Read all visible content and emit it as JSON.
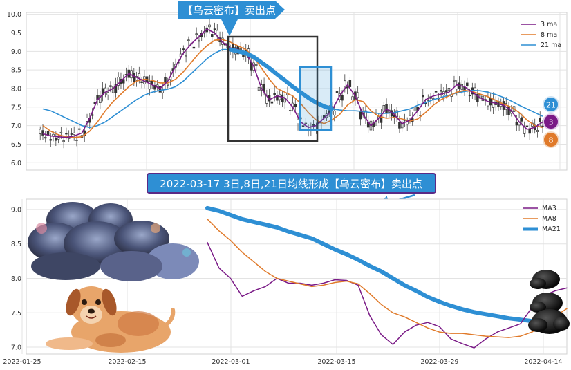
{
  "colors": {
    "ma3": "#7a1a86",
    "ma8": "#e07a2a",
    "ma21": "#2e8fd4",
    "up": "#555555",
    "down": "#333333",
    "box_dark": "#333333",
    "box_blue": "#2e8fd4",
    "annotation_bg": "#2e8fd4"
  },
  "annotations": {
    "top_arrow_label": "【乌云密布】卖出点",
    "middle_banner": "2022-03-17 3日,8日,21日均线形成【乌云密布】卖出点"
  },
  "badges": [
    "21",
    "3",
    "8"
  ],
  "illustrations": [
    "storm-clouds",
    "dog",
    "dark-clouds"
  ],
  "chart_data": [
    {
      "type": "line",
      "panel": "top",
      "ylim": [
        5.8,
        10.05
      ],
      "yticks": [
        "6.0",
        "6.5",
        "7.0",
        "7.5",
        "8.0",
        "8.5",
        "9.0",
        "9.5",
        "10.0"
      ],
      "grid": true,
      "legend_position": "top-right",
      "series": [
        {
          "name": "3 ma",
          "values": [
            6.78,
            6.72,
            6.7,
            6.68,
            6.72,
            6.8,
            7.2,
            7.7,
            7.9,
            8.0,
            8.2,
            8.4,
            8.3,
            8.2,
            8.1,
            8.0,
            8.2,
            8.6,
            8.95,
            9.2,
            9.4,
            9.6,
            9.5,
            9.25,
            9.1,
            9.05,
            8.95,
            8.6,
            8.0,
            7.7,
            7.8,
            7.75,
            7.5,
            7.1,
            6.95,
            7.0,
            7.2,
            7.4,
            7.8,
            8.1,
            7.8,
            7.3,
            7.0,
            7.2,
            7.45,
            7.3,
            7.05,
            7.15,
            7.4,
            7.7,
            7.8,
            7.85,
            7.9,
            8.1,
            8.05,
            7.9,
            7.75,
            7.65,
            7.6,
            7.55,
            7.4,
            7.1,
            6.9,
            6.95,
            7.1
          ]
        },
        {
          "name": "8 ma",
          "values": [
            7.0,
            6.85,
            6.75,
            6.7,
            6.68,
            6.7,
            6.85,
            7.1,
            7.4,
            7.65,
            7.85,
            8.05,
            8.2,
            8.25,
            8.22,
            8.15,
            8.15,
            8.25,
            8.45,
            8.7,
            8.95,
            9.15,
            9.3,
            9.32,
            9.25,
            9.15,
            9.05,
            8.85,
            8.55,
            8.25,
            8.0,
            7.9,
            7.8,
            7.6,
            7.35,
            7.15,
            7.05,
            7.15,
            7.3,
            7.55,
            7.7,
            7.65,
            7.4,
            7.25,
            7.2,
            7.22,
            7.18,
            7.12,
            7.18,
            7.35,
            7.55,
            7.7,
            7.8,
            7.9,
            7.95,
            7.92,
            7.85,
            7.78,
            7.68,
            7.58,
            7.5,
            7.35,
            7.15,
            7.0,
            6.95
          ]
        },
        {
          "name": "21 ma",
          "values": [
            7.45,
            7.4,
            7.3,
            7.2,
            7.1,
            7.0,
            6.95,
            7.0,
            7.1,
            7.25,
            7.4,
            7.55,
            7.7,
            7.82,
            7.9,
            7.95,
            7.98,
            8.05,
            8.2,
            8.4,
            8.6,
            8.8,
            8.95,
            9.05,
            9.05,
            9.0,
            8.95,
            8.85,
            8.7,
            8.55,
            8.38,
            8.22,
            8.05,
            7.9,
            7.75,
            7.62,
            7.52,
            7.45,
            7.42,
            7.4,
            7.4,
            7.38,
            7.35,
            7.33,
            7.33,
            7.35,
            7.4,
            7.45,
            7.55,
            7.62,
            7.7,
            7.76,
            7.82,
            7.88,
            7.92,
            7.95,
            7.94,
            7.9,
            7.84,
            7.76,
            7.66,
            7.55,
            7.45,
            7.35,
            7.25
          ]
        }
      ]
    },
    {
      "type": "line",
      "panel": "bottom",
      "ylim": [
        6.9,
        9.15
      ],
      "yticks": [
        "7.0",
        "7.5",
        "8.0",
        "8.5",
        "9.0"
      ],
      "x_tick_labels": [
        "2022-01-25",
        "2022-02-15",
        "2022-03-01",
        "2022-03-15",
        "2022-03-29",
        "2022-04-14"
      ],
      "grid": true,
      "legend_position": "top-right",
      "series": [
        {
          "name": "MA3",
          "values": [
            8.52,
            8.15,
            8.0,
            7.74,
            7.82,
            7.88,
            8.0,
            7.93,
            7.93,
            7.9,
            7.93,
            7.98,
            7.97,
            7.9,
            7.46,
            7.18,
            7.04,
            7.22,
            7.32,
            7.36,
            7.3,
            7.12,
            7.05,
            6.99,
            7.12,
            7.22,
            7.28,
            7.34,
            7.58,
            7.75,
            7.82,
            7.86
          ]
        },
        {
          "name": "MA8",
          "values": [
            8.86,
            8.69,
            8.55,
            8.38,
            8.24,
            8.1,
            8.0,
            7.96,
            7.92,
            7.88,
            7.9,
            7.94,
            7.96,
            7.92,
            7.78,
            7.62,
            7.5,
            7.44,
            7.36,
            7.28,
            7.22,
            7.2,
            7.2,
            7.18,
            7.16,
            7.15,
            7.14,
            7.16,
            7.22,
            7.33,
            7.45,
            7.56
          ]
        },
        {
          "name": "MA21",
          "values": [
            9.02,
            8.98,
            8.92,
            8.86,
            8.82,
            8.78,
            8.74,
            8.68,
            8.63,
            8.58,
            8.5,
            8.42,
            8.35,
            8.27,
            8.18,
            8.1,
            8.0,
            7.9,
            7.82,
            7.73,
            7.66,
            7.6,
            7.55,
            7.51,
            7.48,
            7.45,
            7.42,
            7.4,
            7.38,
            7.37,
            7.37,
            7.36
          ]
        }
      ]
    }
  ]
}
